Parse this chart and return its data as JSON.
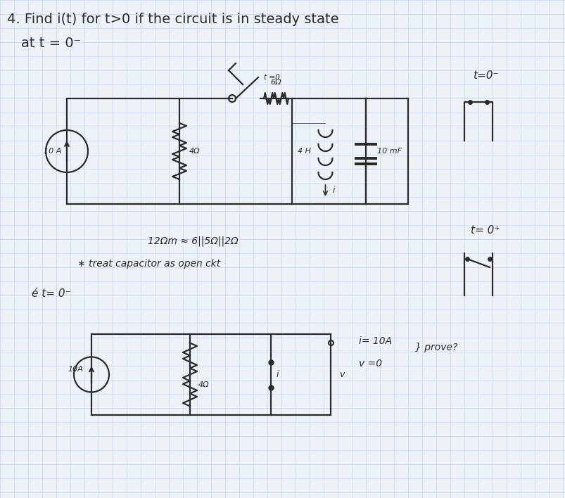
{
  "bg_color": "#eef2f7",
  "grid_color": "#c5d5e5",
  "cc": "#2a2a2a",
  "lw": 1.6,
  "title1": "4. Find i(t) for t>0 if the circuit is in steady state",
  "title2": "at t = 0⁻",
  "note1": "12Ωm ≈ 6||5Ω||2Ω",
  "note2": "∗ treat capacitor as open ckt",
  "bottom_label": "é t= 0⁻",
  "result1": "i= 10A",
  "result2": "v =0",
  "result3": "} prove?"
}
